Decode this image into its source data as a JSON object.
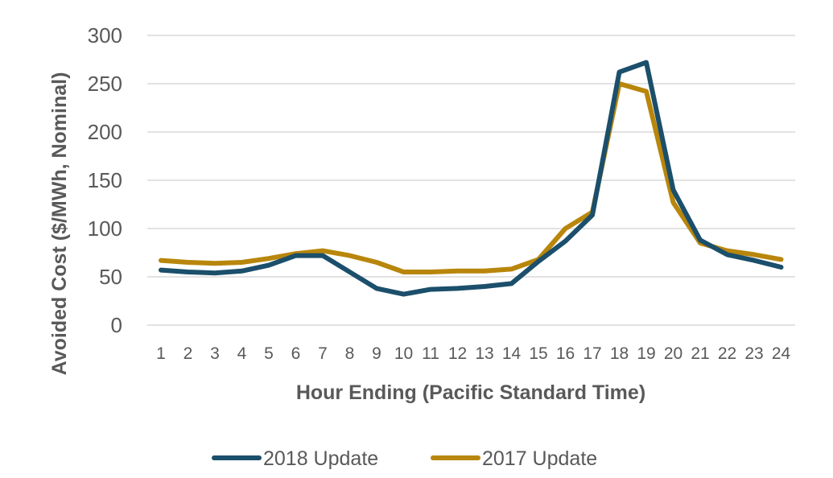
{
  "chart_data": {
    "type": "line",
    "x": [
      1,
      2,
      3,
      4,
      5,
      6,
      7,
      8,
      9,
      10,
      11,
      12,
      13,
      14,
      15,
      16,
      17,
      18,
      19,
      20,
      21,
      22,
      23,
      24
    ],
    "xlabel": "Hour Ending (Pacific Standard Time)",
    "ylabel": "Avoided Cost ($/MWh, Nominal)",
    "ylim": [
      0,
      300
    ],
    "yticks": [
      0,
      50,
      100,
      150,
      200,
      250,
      300
    ],
    "grid": true,
    "legend": "bottom",
    "series": [
      {
        "name": "2018 Update",
        "color": "#1b4f6b",
        "values": [
          57,
          55,
          54,
          56,
          62,
          72,
          72,
          55,
          38,
          32,
          37,
          38,
          40,
          43,
          66,
          87,
          114,
          262,
          272,
          140,
          88,
          73,
          67,
          60
        ]
      },
      {
        "name": "2017 Update",
        "color": "#b8860b",
        "values": [
          67,
          65,
          64,
          65,
          69,
          74,
          77,
          72,
          65,
          55,
          55,
          56,
          56,
          58,
          68,
          100,
          117,
          250,
          242,
          127,
          85,
          77,
          73,
          68
        ]
      }
    ]
  }
}
